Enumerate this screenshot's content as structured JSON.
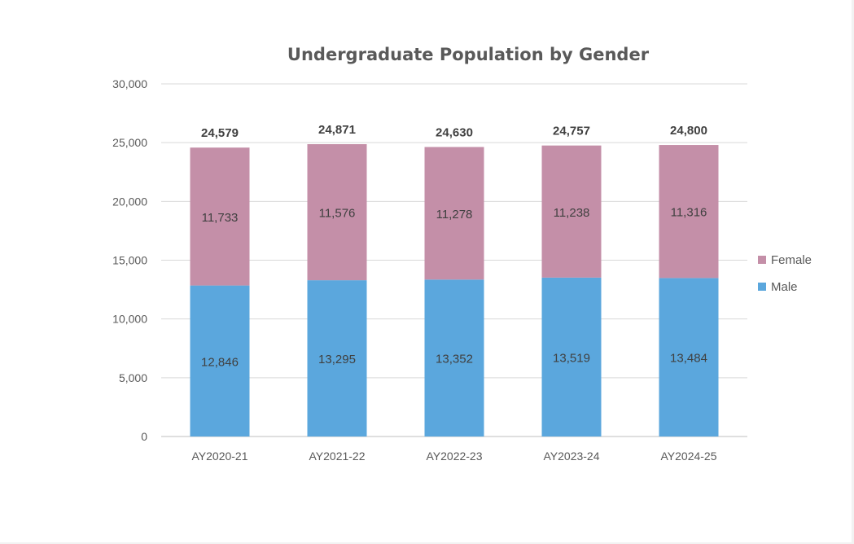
{
  "chart_data": {
    "type": "bar",
    "stacked": true,
    "title": "Undergraduate Population by Gender",
    "xlabel": "",
    "ylabel": "",
    "categories": [
      "AY2020-21",
      "AY2021-22",
      "AY2022-23",
      "AY2023-24",
      "AY2024-25"
    ],
    "series": [
      {
        "name": "Male",
        "color": "#5ba7dd",
        "values": [
          12846,
          13295,
          13352,
          13519,
          13484
        ],
        "labels": [
          "12,846",
          "13,295",
          "13,352",
          "13,519",
          "13,484"
        ]
      },
      {
        "name": "Female",
        "color": "#c48fa8",
        "values": [
          11733,
          11576,
          11278,
          11238,
          11316
        ],
        "labels": [
          "11,733",
          "11,576",
          "11,278",
          "11,238",
          "11,316"
        ]
      }
    ],
    "totals": [
      24579,
      24871,
      24630,
      24757,
      24800
    ],
    "total_labels": [
      "24,579",
      "24,871",
      "24,630",
      "24,757",
      "24,800"
    ],
    "ylim": [
      0,
      30000
    ],
    "yticks": [
      0,
      5000,
      10000,
      15000,
      20000,
      25000,
      30000
    ],
    "ytick_labels": [
      "0",
      "5,000",
      "10,000",
      "15,000",
      "20,000",
      "25,000",
      "30,000"
    ],
    "grid": true,
    "legend": {
      "position": "right",
      "order": [
        "Female",
        "Male"
      ]
    }
  }
}
